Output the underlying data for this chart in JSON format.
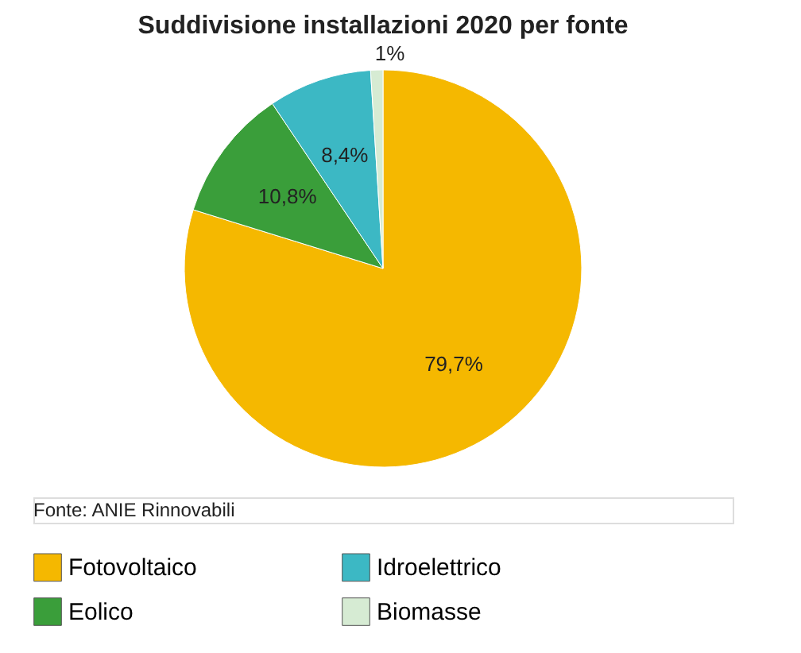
{
  "chart_data": {
    "type": "pie",
    "title": "Suddivisione installazioni 2020 per fonte",
    "categories": [
      "Fotovoltaico",
      "Eolico",
      "Idroelettrico",
      "Biomasse"
    ],
    "values": [
      79.7,
      10.8,
      8.4,
      1
    ],
    "value_labels": [
      "79,7%",
      "10,8%",
      "8,4%",
      "1%"
    ],
    "colors": [
      "#f5b800",
      "#3a9e3a",
      "#3cb8c4",
      "#d6ebd3"
    ],
    "legend": "bottom",
    "annotations": [
      "Fonte: ANIE Rinnovabili"
    ]
  }
}
